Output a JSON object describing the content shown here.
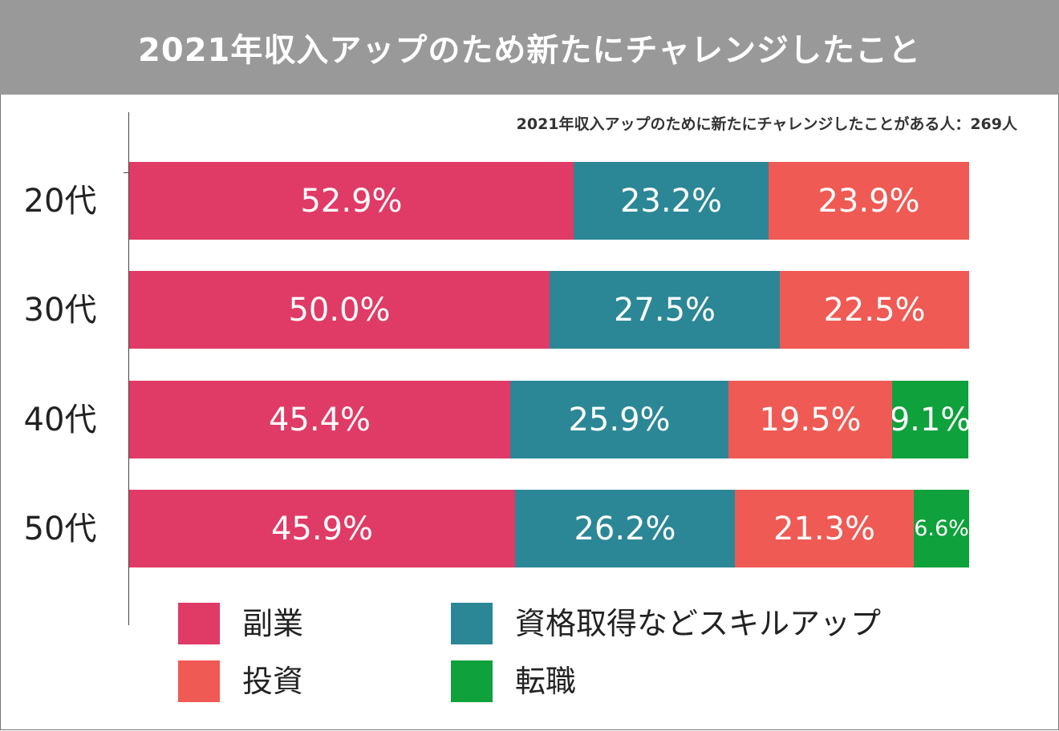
{
  "chart_data": {
    "type": "bar",
    "orientation": "horizontal",
    "stacked": true,
    "title": "2021年収入アップのため新たにチャレンジしたこと",
    "subtitle": "2021年収入アップのために新たにチャレンジしたことがある人：269人",
    "categories": [
      "20代",
      "30代",
      "40代",
      "50代"
    ],
    "series": [
      {
        "name": "副業",
        "color": "#e03b66",
        "values": [
          52.9,
          50.0,
          45.4,
          45.9
        ],
        "labels": [
          "52.9%",
          "50.0%",
          "45.4%",
          "45.9%"
        ]
      },
      {
        "name": "資格取得などスキルアップ",
        "color": "#2b8796",
        "values": [
          23.2,
          27.5,
          25.9,
          26.2
        ],
        "labels": [
          "23.2%",
          "27.5%",
          "25.9%",
          "26.2%"
        ]
      },
      {
        "name": "投資",
        "color": "#f05a54",
        "values": [
          23.9,
          22.5,
          19.5,
          21.3
        ],
        "labels": [
          "23.9%",
          "22.5%",
          "19.5%",
          "21.3%"
        ]
      },
      {
        "name": "転職",
        "color": "#0ea13c",
        "values": [
          0,
          0,
          9.1,
          6.6
        ],
        "labels": [
          "",
          "",
          "9.1%",
          "6.6%"
        ]
      }
    ],
    "xlim": [
      0,
      100
    ],
    "legend": {
      "position": "bottom",
      "order": [
        "副業",
        "資格取得などスキルアップ",
        "投資",
        "転職"
      ]
    }
  }
}
